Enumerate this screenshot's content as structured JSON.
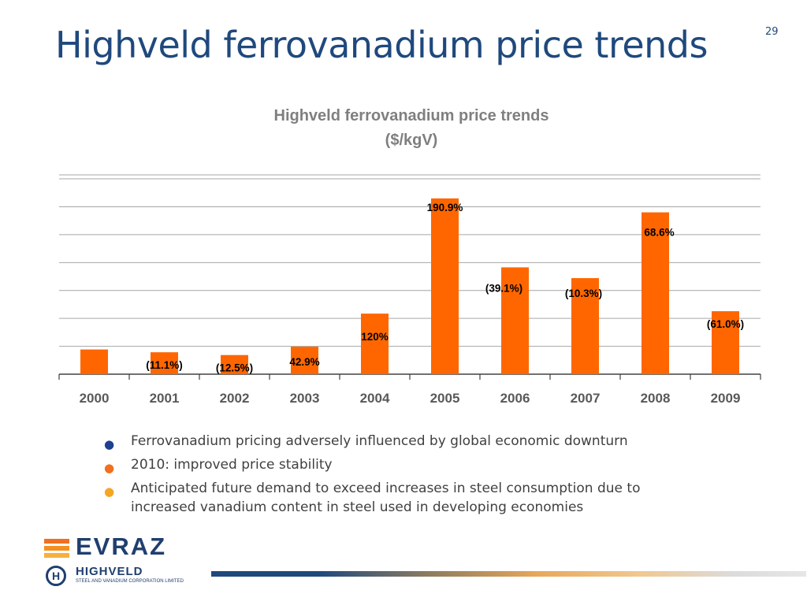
{
  "slide": {
    "title": "Highveld ferrovanadium price trends",
    "page_number": "29"
  },
  "chart_data": {
    "type": "bar",
    "title": "Highveld ferrovanadium price trends",
    "subtitle": "($/kgV)",
    "categories": [
      "2000",
      "2001",
      "2002",
      "2003",
      "2004",
      "2005",
      "2006",
      "2007",
      "2008",
      "2009"
    ],
    "values": [
      6.2,
      5.5,
      4.8,
      6.9,
      15.2,
      44.1,
      26.8,
      24.1,
      40.6,
      15.8
    ],
    "data_labels": [
      "",
      "(11.1%)",
      "(12.5%)",
      "42.9%",
      "120%",
      "190.9%",
      "(39.1%)",
      "(10.3%)",
      "68.6%",
      "(61.0%)"
    ],
    "ylim": [
      0,
      50
    ],
    "grid": true,
    "bar_color": "#ff6600"
  },
  "bullets": [
    {
      "text": "Ferrovanadium pricing adversely influenced by global economic downturn",
      "color": "#1f3f8f"
    },
    {
      "text": "2010: improved price stability",
      "color": "#f07020"
    },
    {
      "text": "Anticipated future demand to exceed increases in steel consumption due to increased vanadium content in steel used in developing economies",
      "color": "#f5a623"
    }
  ],
  "logo": {
    "brand": "EVRAZ",
    "sub_brand": "HIGHVELD",
    "sub_text": "STEEL AND VANADIUM CORPORATION LIMITED",
    "mark": "H",
    "colors": [
      "#f07020",
      "#f39020",
      "#f5b040"
    ]
  }
}
